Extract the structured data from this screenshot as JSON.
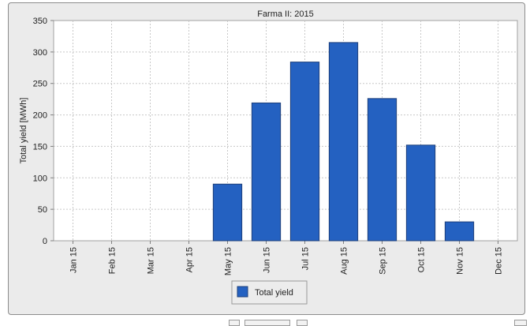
{
  "chart_data": {
    "type": "bar",
    "title": "Farma II: 2015",
    "ylabel": "Total yield [MWh]",
    "xlabel": "",
    "categories": [
      "Jan 15",
      "Feb 15",
      "Mar 15",
      "Apr 15",
      "May 15",
      "Jun 15",
      "Jul 15",
      "Aug 15",
      "Sep 15",
      "Oct 15",
      "Nov 15",
      "Dec 15"
    ],
    "series": [
      {
        "name": "Total yield",
        "values": [
          0,
          0,
          0,
          0,
          90,
          219,
          284,
          315,
          226,
          152,
          30,
          0
        ]
      }
    ],
    "ylim": [
      0,
      350
    ],
    "yticks": [
      "0",
      "50",
      "100",
      "150",
      "200",
      "250",
      "300",
      "350"
    ],
    "grid": true,
    "legend_position": "bottom-center",
    "colors": {
      "bar": "#2461c1",
      "bar_edge": "#1d3f7a",
      "plot_bg": "#ffffff",
      "panel_bg": "#ebebeb",
      "grid": "#c8c8c8"
    }
  }
}
